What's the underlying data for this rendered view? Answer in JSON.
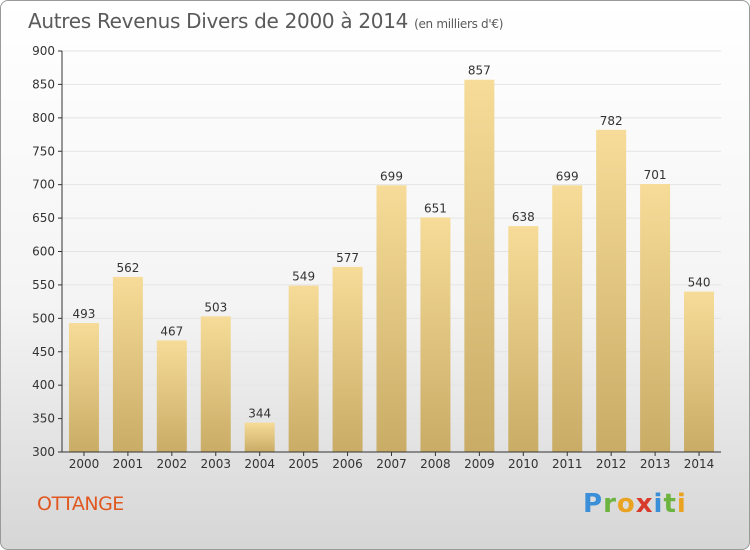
{
  "title": "Autres Revenus Divers de 2000 à 2014",
  "unit": "(en milliers d'€)",
  "commune": "OTTANGE",
  "logo": {
    "letters": [
      "P",
      "r",
      "o",
      "x",
      "i",
      "t",
      "i"
    ],
    "colors": [
      "#3b8ed8",
      "#6cb33f",
      "#e9a321",
      "#d83b2b",
      "#3b8ed8",
      "#6cb33f",
      "#e9a321"
    ]
  },
  "colors": {
    "bar_light": "#f6dc98",
    "bar_dark": "#c9ac66",
    "axis": "#333333",
    "grid": "#e4e4e4",
    "text": "#333333",
    "commune": "#e0571f"
  },
  "chart_data": {
    "type": "bar",
    "categories": [
      "2000",
      "2001",
      "2002",
      "2003",
      "2004",
      "2005",
      "2006",
      "2007",
      "2008",
      "2009",
      "2010",
      "2011",
      "2012",
      "2013",
      "2014"
    ],
    "values": [
      493,
      562,
      467,
      503,
      344,
      549,
      577,
      699,
      651,
      857,
      638,
      699,
      782,
      701,
      540
    ],
    "ylim": [
      300,
      900
    ],
    "yticks": [
      300,
      350,
      400,
      450,
      500,
      550,
      600,
      650,
      700,
      750,
      800,
      850,
      900
    ],
    "grid": true,
    "data_labels": true
  }
}
